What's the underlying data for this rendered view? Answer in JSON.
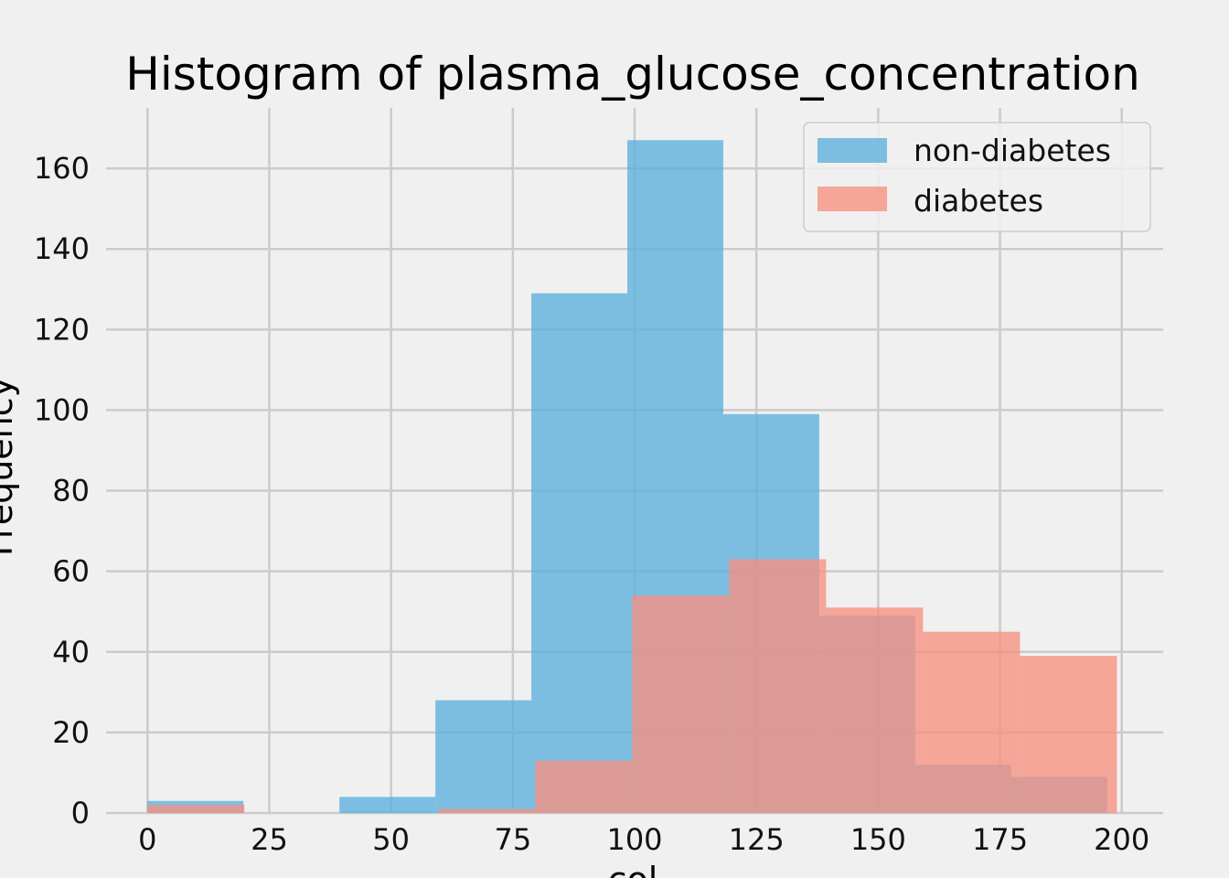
{
  "chart_data": {
    "type": "bar",
    "title": "Histogram of plasma_glucose_concentration",
    "xlabel": "col",
    "ylabel": "Frequency",
    "xlim": [
      -8.5,
      208.5
    ],
    "ylim": [
      0,
      175
    ],
    "xticks": [
      0,
      25,
      50,
      75,
      100,
      125,
      150,
      175,
      200
    ],
    "yticks": [
      0,
      20,
      40,
      60,
      80,
      100,
      120,
      140,
      160
    ],
    "grid": true,
    "legend_position": "top-right",
    "series": [
      {
        "name": "non-diabetes",
        "color": "#5aafdc",
        "opacity": 0.78,
        "bins": [
          {
            "x0": 0,
            "x1": 19.7,
            "count": 3
          },
          {
            "x0": 19.7,
            "x1": 39.4,
            "count": 0
          },
          {
            "x0": 39.4,
            "x1": 59.1,
            "count": 4
          },
          {
            "x0": 59.1,
            "x1": 78.8,
            "count": 28
          },
          {
            "x0": 78.8,
            "x1": 98.5,
            "count": 129
          },
          {
            "x0": 98.5,
            "x1": 118.2,
            "count": 167
          },
          {
            "x0": 118.2,
            "x1": 137.9,
            "count": 99
          },
          {
            "x0": 137.9,
            "x1": 157.6,
            "count": 49
          },
          {
            "x0": 157.6,
            "x1": 177.3,
            "count": 12
          },
          {
            "x0": 177.3,
            "x1": 197,
            "count": 9
          }
        ]
      },
      {
        "name": "diabetes",
        "color": "#f78f80",
        "opacity": 0.78,
        "bins": [
          {
            "x0": 0,
            "x1": 19.9,
            "count": 2
          },
          {
            "x0": 19.9,
            "x1": 39.8,
            "count": 0
          },
          {
            "x0": 39.8,
            "x1": 59.7,
            "count": 0
          },
          {
            "x0": 59.7,
            "x1": 79.6,
            "count": 1
          },
          {
            "x0": 79.6,
            "x1": 99.5,
            "count": 13
          },
          {
            "x0": 99.5,
            "x1": 119.4,
            "count": 54
          },
          {
            "x0": 119.4,
            "x1": 139.3,
            "count": 63
          },
          {
            "x0": 139.3,
            "x1": 159.2,
            "count": 51
          },
          {
            "x0": 159.2,
            "x1": 179.1,
            "count": 45
          },
          {
            "x0": 179.1,
            "x1": 199,
            "count": 39
          }
        ]
      }
    ]
  }
}
